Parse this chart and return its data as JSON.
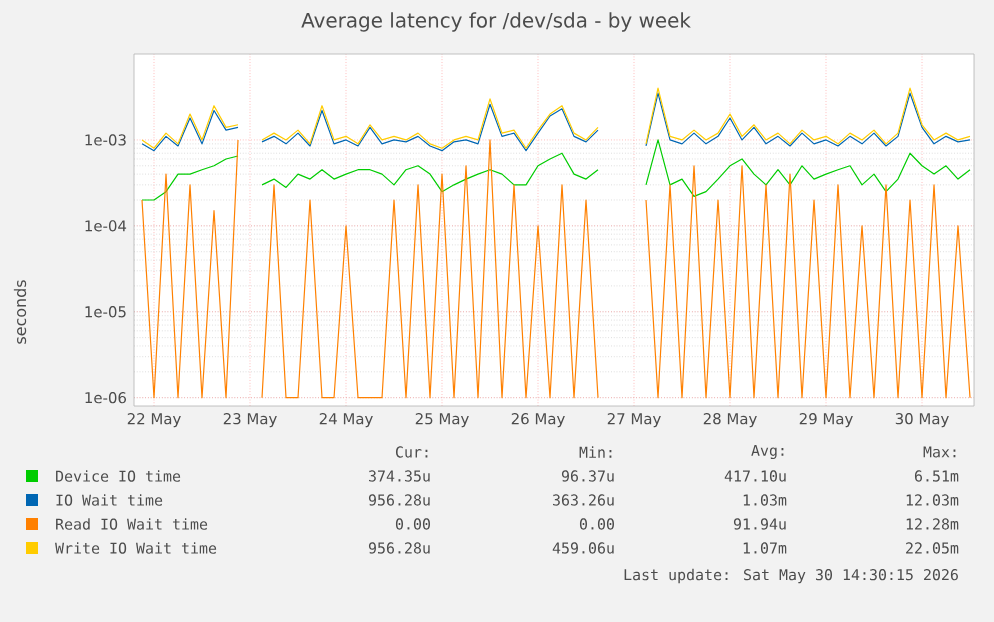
{
  "chart_data": {
    "type": "line",
    "title": "Average latency for /dev/sda - by week",
    "ylabel": "seconds",
    "log": "y",
    "grid": true,
    "legend": "bottom",
    "xlim": [
      "2026-05-21T19:00",
      "2026-05-30T13:00"
    ],
    "ylim": [
      8e-07,
      0.01
    ],
    "xticks": [
      {
        "value": "2026-05-22",
        "label": "22 May"
      },
      {
        "value": "2026-05-23",
        "label": "23 May"
      },
      {
        "value": "2026-05-24",
        "label": "24 May"
      },
      {
        "value": "2026-05-25",
        "label": "25 May"
      },
      {
        "value": "2026-05-26",
        "label": "26 May"
      },
      {
        "value": "2026-05-27",
        "label": "27 May"
      },
      {
        "value": "2026-05-28",
        "label": "28 May"
      },
      {
        "value": "2026-05-29",
        "label": "29 May"
      },
      {
        "value": "2026-05-30",
        "label": "30 May"
      }
    ],
    "yticks": [
      {
        "value": 1e-06,
        "label": "1e-06"
      },
      {
        "value": 1e-05,
        "label": "1e-05"
      },
      {
        "value": 0.0001,
        "label": "1e-04"
      },
      {
        "value": 0.001,
        "label": "1e-03"
      }
    ],
    "x": [
      "2026-05-21T21:00",
      "2026-05-22T00:00",
      "2026-05-22T03:00",
      "2026-05-22T06:00",
      "2026-05-22T09:00",
      "2026-05-22T12:00",
      "2026-05-22T15:00",
      "2026-05-22T18:00",
      "2026-05-22T21:00",
      "2026-05-23T00:00",
      "2026-05-23T03:00",
      "2026-05-23T06:00",
      "2026-05-23T09:00",
      "2026-05-23T12:00",
      "2026-05-23T15:00",
      "2026-05-23T18:00",
      "2026-05-23T21:00",
      "2026-05-24T00:00",
      "2026-05-24T03:00",
      "2026-05-24T06:00",
      "2026-05-24T09:00",
      "2026-05-24T12:00",
      "2026-05-24T15:00",
      "2026-05-24T18:00",
      "2026-05-24T21:00",
      "2026-05-25T00:00",
      "2026-05-25T03:00",
      "2026-05-25T06:00",
      "2026-05-25T09:00",
      "2026-05-25T12:00",
      "2026-05-25T15:00",
      "2026-05-25T18:00",
      "2026-05-25T21:00",
      "2026-05-26T00:00",
      "2026-05-26T03:00",
      "2026-05-26T06:00",
      "2026-05-26T09:00",
      "2026-05-26T12:00",
      "2026-05-26T15:00",
      "2026-05-26T18:00",
      "2026-05-26T21:00",
      "2026-05-27T00:00",
      "2026-05-27T03:00",
      "2026-05-27T06:00",
      "2026-05-27T09:00",
      "2026-05-27T12:00",
      "2026-05-27T15:00",
      "2026-05-27T18:00",
      "2026-05-27T21:00",
      "2026-05-28T00:00",
      "2026-05-28T03:00",
      "2026-05-28T06:00",
      "2026-05-28T09:00",
      "2026-05-28T12:00",
      "2026-05-28T15:00",
      "2026-05-28T18:00",
      "2026-05-28T21:00",
      "2026-05-29T00:00",
      "2026-05-29T03:00",
      "2026-05-29T06:00",
      "2026-05-29T09:00",
      "2026-05-29T12:00",
      "2026-05-29T15:00",
      "2026-05-29T18:00",
      "2026-05-29T21:00",
      "2026-05-30T00:00",
      "2026-05-30T03:00",
      "2026-05-30T06:00",
      "2026-05-30T09:00",
      "2026-05-30T12:00"
    ],
    "series": [
      {
        "name": "Device IO time",
        "color": "#00cc00",
        "values": [
          0.0002,
          0.0002,
          0.00025,
          0.0004,
          0.0004,
          0.00045,
          0.0005,
          0.0006,
          0.00065,
          null,
          0.0003,
          0.00035,
          0.00028,
          0.0004,
          0.00035,
          0.00045,
          0.00035,
          0.0004,
          0.00045,
          0.00045,
          0.0004,
          0.0003,
          0.00045,
          0.0005,
          0.0004,
          0.00025,
          0.0003,
          0.00035,
          0.0004,
          0.00045,
          0.0004,
          0.0003,
          0.0003,
          0.0005,
          0.0006,
          0.0007,
          0.0004,
          0.00035,
          0.00045,
          null,
          null,
          null,
          0.0003,
          0.001,
          0.0003,
          0.00035,
          0.00022,
          0.00025,
          0.00035,
          0.0005,
          0.0006,
          0.0004,
          0.0003,
          0.00045,
          0.0003,
          0.0005,
          0.00035,
          0.0004,
          0.00045,
          0.0005,
          0.0003,
          0.0004,
          0.00025,
          0.00035,
          0.0007,
          0.0005,
          0.0004,
          0.0005,
          0.00035,
          0.00045
        ]
      },
      {
        "name": "IO Wait time",
        "color": "#0066b3",
        "values": [
          0.0009,
          0.00075,
          0.0011,
          0.00085,
          0.0018,
          0.0009,
          0.0022,
          0.0013,
          0.0014,
          null,
          0.00095,
          0.0011,
          0.0009,
          0.0012,
          0.00085,
          0.0022,
          0.0009,
          0.001,
          0.00085,
          0.0014,
          0.0009,
          0.001,
          0.00095,
          0.0011,
          0.00085,
          0.00075,
          0.00095,
          0.001,
          0.0009,
          0.0026,
          0.0011,
          0.0012,
          0.00075,
          0.0012,
          0.0019,
          0.0023,
          0.0011,
          0.00095,
          0.0013,
          null,
          null,
          null,
          0.00085,
          0.0035,
          0.001,
          0.0009,
          0.0012,
          0.0009,
          0.0011,
          0.0018,
          0.001,
          0.0014,
          0.0009,
          0.0011,
          0.00085,
          0.0012,
          0.0009,
          0.001,
          0.00085,
          0.0011,
          0.0009,
          0.0012,
          0.00085,
          0.0011,
          0.0035,
          0.0014,
          0.0009,
          0.0011,
          0.00095,
          0.001
        ]
      },
      {
        "name": "Read IO Wait time",
        "color": "#ff8000",
        "values": [
          0.0002,
          1e-06,
          0.0004,
          1e-06,
          0.0003,
          1e-06,
          0.00015,
          1e-06,
          0.001,
          null,
          1e-06,
          0.0003,
          1e-06,
          1e-06,
          0.0002,
          1e-06,
          1e-06,
          0.0001,
          1e-06,
          1e-06,
          1e-06,
          0.0002,
          1e-06,
          0.0003,
          1e-06,
          0.0004,
          1e-06,
          0.0005,
          1e-06,
          0.001,
          1e-06,
          0.0003,
          1e-06,
          0.0001,
          1e-06,
          0.0003,
          1e-06,
          0.0002,
          1e-06,
          null,
          null,
          null,
          0.0002,
          1e-06,
          0.0003,
          1e-06,
          0.0005,
          1e-06,
          0.0002,
          1e-06,
          0.0005,
          1e-06,
          0.0003,
          1e-06,
          0.0004,
          1e-06,
          0.0002,
          1e-06,
          0.0003,
          1e-06,
          0.0001,
          1e-06,
          0.0003,
          1e-06,
          0.0002,
          1e-06,
          0.0003,
          1e-06,
          0.0001,
          1e-06
        ]
      },
      {
        "name": "Write IO Wait time",
        "color": "#ffcc00",
        "values": [
          0.001,
          0.0008,
          0.0012,
          0.0009,
          0.002,
          0.001,
          0.0025,
          0.0014,
          0.0015,
          null,
          0.001,
          0.0012,
          0.001,
          0.0013,
          0.0009,
          0.0025,
          0.001,
          0.0011,
          0.0009,
          0.0015,
          0.001,
          0.0011,
          0.001,
          0.0012,
          0.0009,
          0.0008,
          0.001,
          0.0011,
          0.001,
          0.003,
          0.0012,
          0.0013,
          0.0008,
          0.0013,
          0.002,
          0.0025,
          0.0012,
          0.001,
          0.0014,
          null,
          null,
          null,
          0.0009,
          0.004,
          0.0011,
          0.001,
          0.0013,
          0.001,
          0.0012,
          0.002,
          0.0011,
          0.0015,
          0.001,
          0.0012,
          0.0009,
          0.0013,
          0.001,
          0.0011,
          0.0009,
          0.0012,
          0.001,
          0.0013,
          0.0009,
          0.0012,
          0.004,
          0.0015,
          0.001,
          0.0012,
          0.001,
          0.0011
        ]
      }
    ],
    "annotations": [
      "Cur:",
      "Min:",
      "Avg:",
      "Max:",
      "374.35u",
      "96.37u",
      "417.10u",
      "6.51m",
      "956.28u",
      "363.26u",
      "1.03m",
      "12.03m",
      "0.00",
      "0.00",
      "91.94u",
      "12.28m",
      "956.28u",
      "459.06u",
      "1.07m",
      "22.05m",
      "Last update: Sat May 30 14:30:15 2026"
    ]
  }
}
